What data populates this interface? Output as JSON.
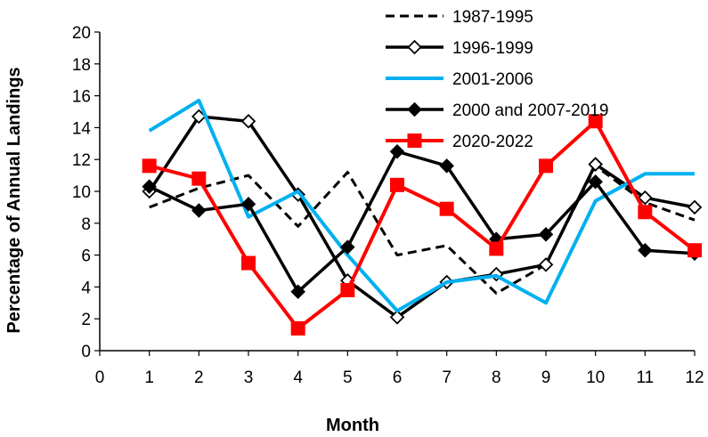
{
  "chart_data": {
    "type": "line",
    "xlabel": "Month",
    "ylabel": "Percentage of Annual Landings",
    "xlim": [
      0,
      12
    ],
    "ylim": [
      0,
      20
    ],
    "x_ticks": [
      "0",
      "1",
      "2",
      "3",
      "4",
      "5",
      "6",
      "7",
      "8",
      "9",
      "10",
      "11",
      "12"
    ],
    "y_ticks": [
      "0",
      "2",
      "4",
      "6",
      "8",
      "10",
      "12",
      "14",
      "16",
      "18",
      "20"
    ],
    "grid": false,
    "legend_position": "top-right",
    "x": [
      1,
      2,
      3,
      4,
      5,
      6,
      7,
      8,
      9,
      10,
      11,
      12
    ],
    "series": [
      {
        "name": "1987-1995",
        "style": "dashed",
        "color": "#000000",
        "marker": "none",
        "values": [
          9.0,
          10.2,
          11.0,
          7.8,
          11.2,
          6.0,
          6.6,
          3.6,
          5.4,
          11.6,
          9.3,
          8.2
        ]
      },
      {
        "name": "1996-1999",
        "style": "solid",
        "color": "#000000",
        "marker": "diamond-open",
        "values": [
          10.0,
          14.7,
          14.4,
          9.8,
          4.4,
          2.1,
          4.3,
          4.8,
          5.4,
          11.7,
          9.6,
          9.0
        ]
      },
      {
        "name": "2001-2006",
        "style": "solid",
        "color": "#00B0F0",
        "marker": "none",
        "values": [
          13.8,
          15.7,
          8.4,
          10.0,
          6.0,
          2.5,
          4.3,
          4.7,
          3.0,
          9.4,
          11.1,
          11.1
        ]
      },
      {
        "name": "2000 and 2007-2019",
        "style": "solid",
        "color": "#000000",
        "marker": "diamond-filled",
        "values": [
          10.3,
          8.8,
          9.2,
          3.7,
          6.5,
          12.5,
          11.6,
          7.0,
          7.3,
          10.6,
          6.3,
          6.1
        ]
      },
      {
        "name": "2020-2022",
        "style": "solid",
        "color": "#FF0000",
        "marker": "square-filled",
        "values": [
          11.6,
          10.8,
          5.5,
          1.4,
          3.8,
          10.4,
          8.9,
          6.4,
          11.6,
          14.4,
          8.7,
          6.3
        ]
      }
    ]
  }
}
